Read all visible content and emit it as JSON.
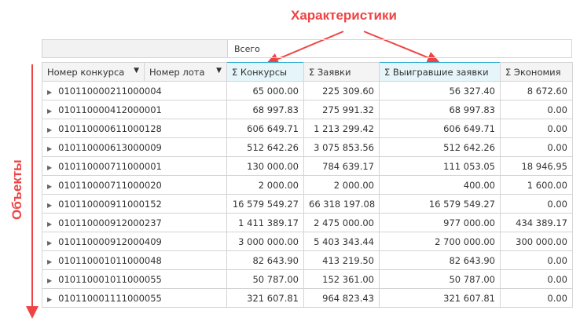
{
  "annotations": {
    "top": "Характеристики",
    "left": "Объекты",
    "color": "#ee4444"
  },
  "grand_header": "Всего",
  "columns": [
    {
      "label": "Номер конкурса",
      "icon": "filter-icon"
    },
    {
      "label": "Номер лота",
      "icon": "filter-icon"
    },
    {
      "label": "Σ Конкурсы",
      "highlighted": true
    },
    {
      "label": "Σ Заявки"
    },
    {
      "label": "Σ Выигравшие заявки",
      "highlighted": true
    },
    {
      "label": "Σ Экономия"
    }
  ],
  "rows": [
    [
      "010110000211000004",
      "65 000.00",
      "225 309.60",
      "56 327.40",
      "8 672.60"
    ],
    [
      "010110000412000001",
      "68 997.83",
      "275 991.32",
      "68 997.83",
      "0.00"
    ],
    [
      "010110000611000128",
      "606 649.71",
      "1 213 299.42",
      "606 649.71",
      "0.00"
    ],
    [
      "010110000613000009",
      "512 642.26",
      "3 075 853.56",
      "512 642.26",
      "0.00"
    ],
    [
      "010110000711000001",
      "130 000.00",
      "784 639.17",
      "111 053.05",
      "18 946.95"
    ],
    [
      "010110000711000020",
      "2 000.00",
      "2 000.00",
      "400.00",
      "1 600.00"
    ],
    [
      "010110000911000152",
      "16 579 549.27",
      "66 318 197.08",
      "16 579 549.27",
      "0.00"
    ],
    [
      "010110000912000237",
      "1 411 389.17",
      "2 475 000.00",
      "977 000.00",
      "434 389.17"
    ],
    [
      "010110000912000409",
      "3 000 000.00",
      "5 403 343.44",
      "2 700 000.00",
      "300 000.00"
    ],
    [
      "010110001011000048",
      "82 643.90",
      "413 219.50",
      "82 643.90",
      "0.00"
    ],
    [
      "010110001011000055",
      "50 787.00",
      "152 361.00",
      "50 787.00",
      "0.00"
    ],
    [
      "010110001111000055",
      "321 607.81",
      "964 823.43",
      "321 607.81",
      "0.00"
    ]
  ]
}
